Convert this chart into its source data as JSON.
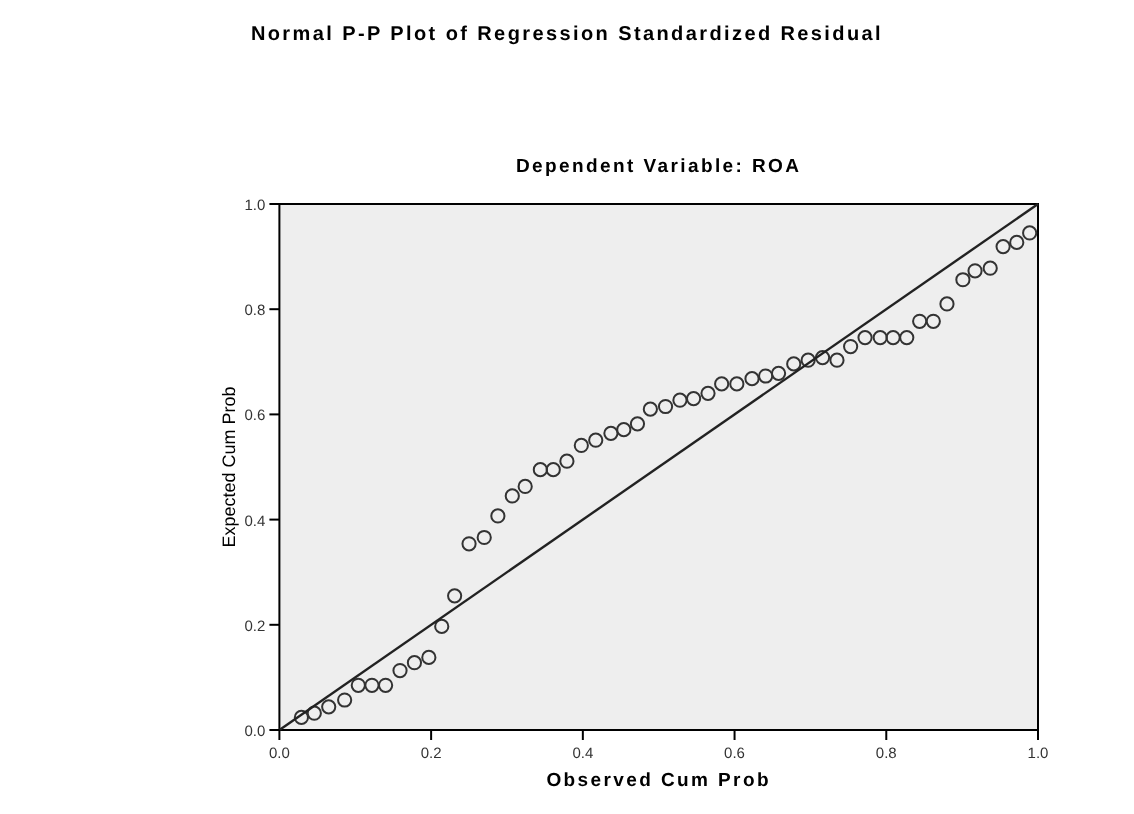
{
  "chart_data": {
    "type": "scatter",
    "title": "Normal P-P Plot of Regression Standardized Residual",
    "subtitle": "Dependent Variable: ROA",
    "xlabel": "Observed Cum Prob",
    "ylabel": "Expected Cum Prob",
    "xlim": [
      0,
      1
    ],
    "ylim": [
      0,
      1
    ],
    "xticks": [
      {
        "value": 0,
        "label": "0.0"
      },
      {
        "value": 0.2,
        "label": "0.2"
      },
      {
        "value": 0.4,
        "label": "0.4"
      },
      {
        "value": 0.6,
        "label": "0.6"
      },
      {
        "value": 0.8,
        "label": "0.8"
      },
      {
        "value": 1,
        "label": "1.0"
      }
    ],
    "yticks": [
      {
        "value": 0,
        "label": "0.0"
      },
      {
        "value": 0.2,
        "label": "0.2"
      },
      {
        "value": 0.4,
        "label": "0.4"
      },
      {
        "value": 0.6,
        "label": "0.6"
      },
      {
        "value": 0.8,
        "label": "0.8"
      },
      {
        "value": 1,
        "label": "1.0"
      }
    ],
    "grid": false,
    "marker": "circle",
    "series": [
      {
        "color": "#333333",
        "x": [
          0.029,
          0.046,
          0.065,
          0.086,
          0.104,
          0.122,
          0.14,
          0.159,
          0.178,
          0.197,
          0.214,
          0.231,
          0.25,
          0.27,
          0.288,
          0.307,
          0.324,
          0.344,
          0.361,
          0.379,
          0.398,
          0.417,
          0.437,
          0.454,
          0.472,
          0.489,
          0.509,
          0.528,
          0.546,
          0.565,
          0.583,
          0.603,
          0.623,
          0.641,
          0.658,
          0.678,
          0.697,
          0.716,
          0.735,
          0.753,
          0.772,
          0.792,
          0.809,
          0.827,
          0.844,
          0.862,
          0.88,
          0.901,
          0.917,
          0.937,
          0.954,
          0.972,
          0.989
        ],
        "values": [
          0.024,
          0.032,
          0.044,
          0.057,
          0.085,
          0.085,
          0.085,
          0.113,
          0.128,
          0.138,
          0.197,
          0.255,
          0.354,
          0.366,
          0.407,
          0.445,
          0.463,
          0.495,
          0.495,
          0.511,
          0.541,
          0.551,
          0.564,
          0.571,
          0.582,
          0.61,
          0.615,
          0.627,
          0.63,
          0.64,
          0.658,
          0.658,
          0.668,
          0.673,
          0.678,
          0.696,
          0.703,
          0.708,
          0.703,
          0.729,
          0.746,
          0.746,
          0.746,
          0.746,
          0.777,
          0.777,
          0.81,
          0.856,
          0.873,
          0.878,
          0.919,
          0.927,
          0.945
        ]
      },
      {
        "type": "line",
        "color": "#222222",
        "line_style": "solid",
        "marker": "none",
        "x": [
          0,
          1
        ],
        "values": [
          0,
          1
        ]
      }
    ]
  }
}
